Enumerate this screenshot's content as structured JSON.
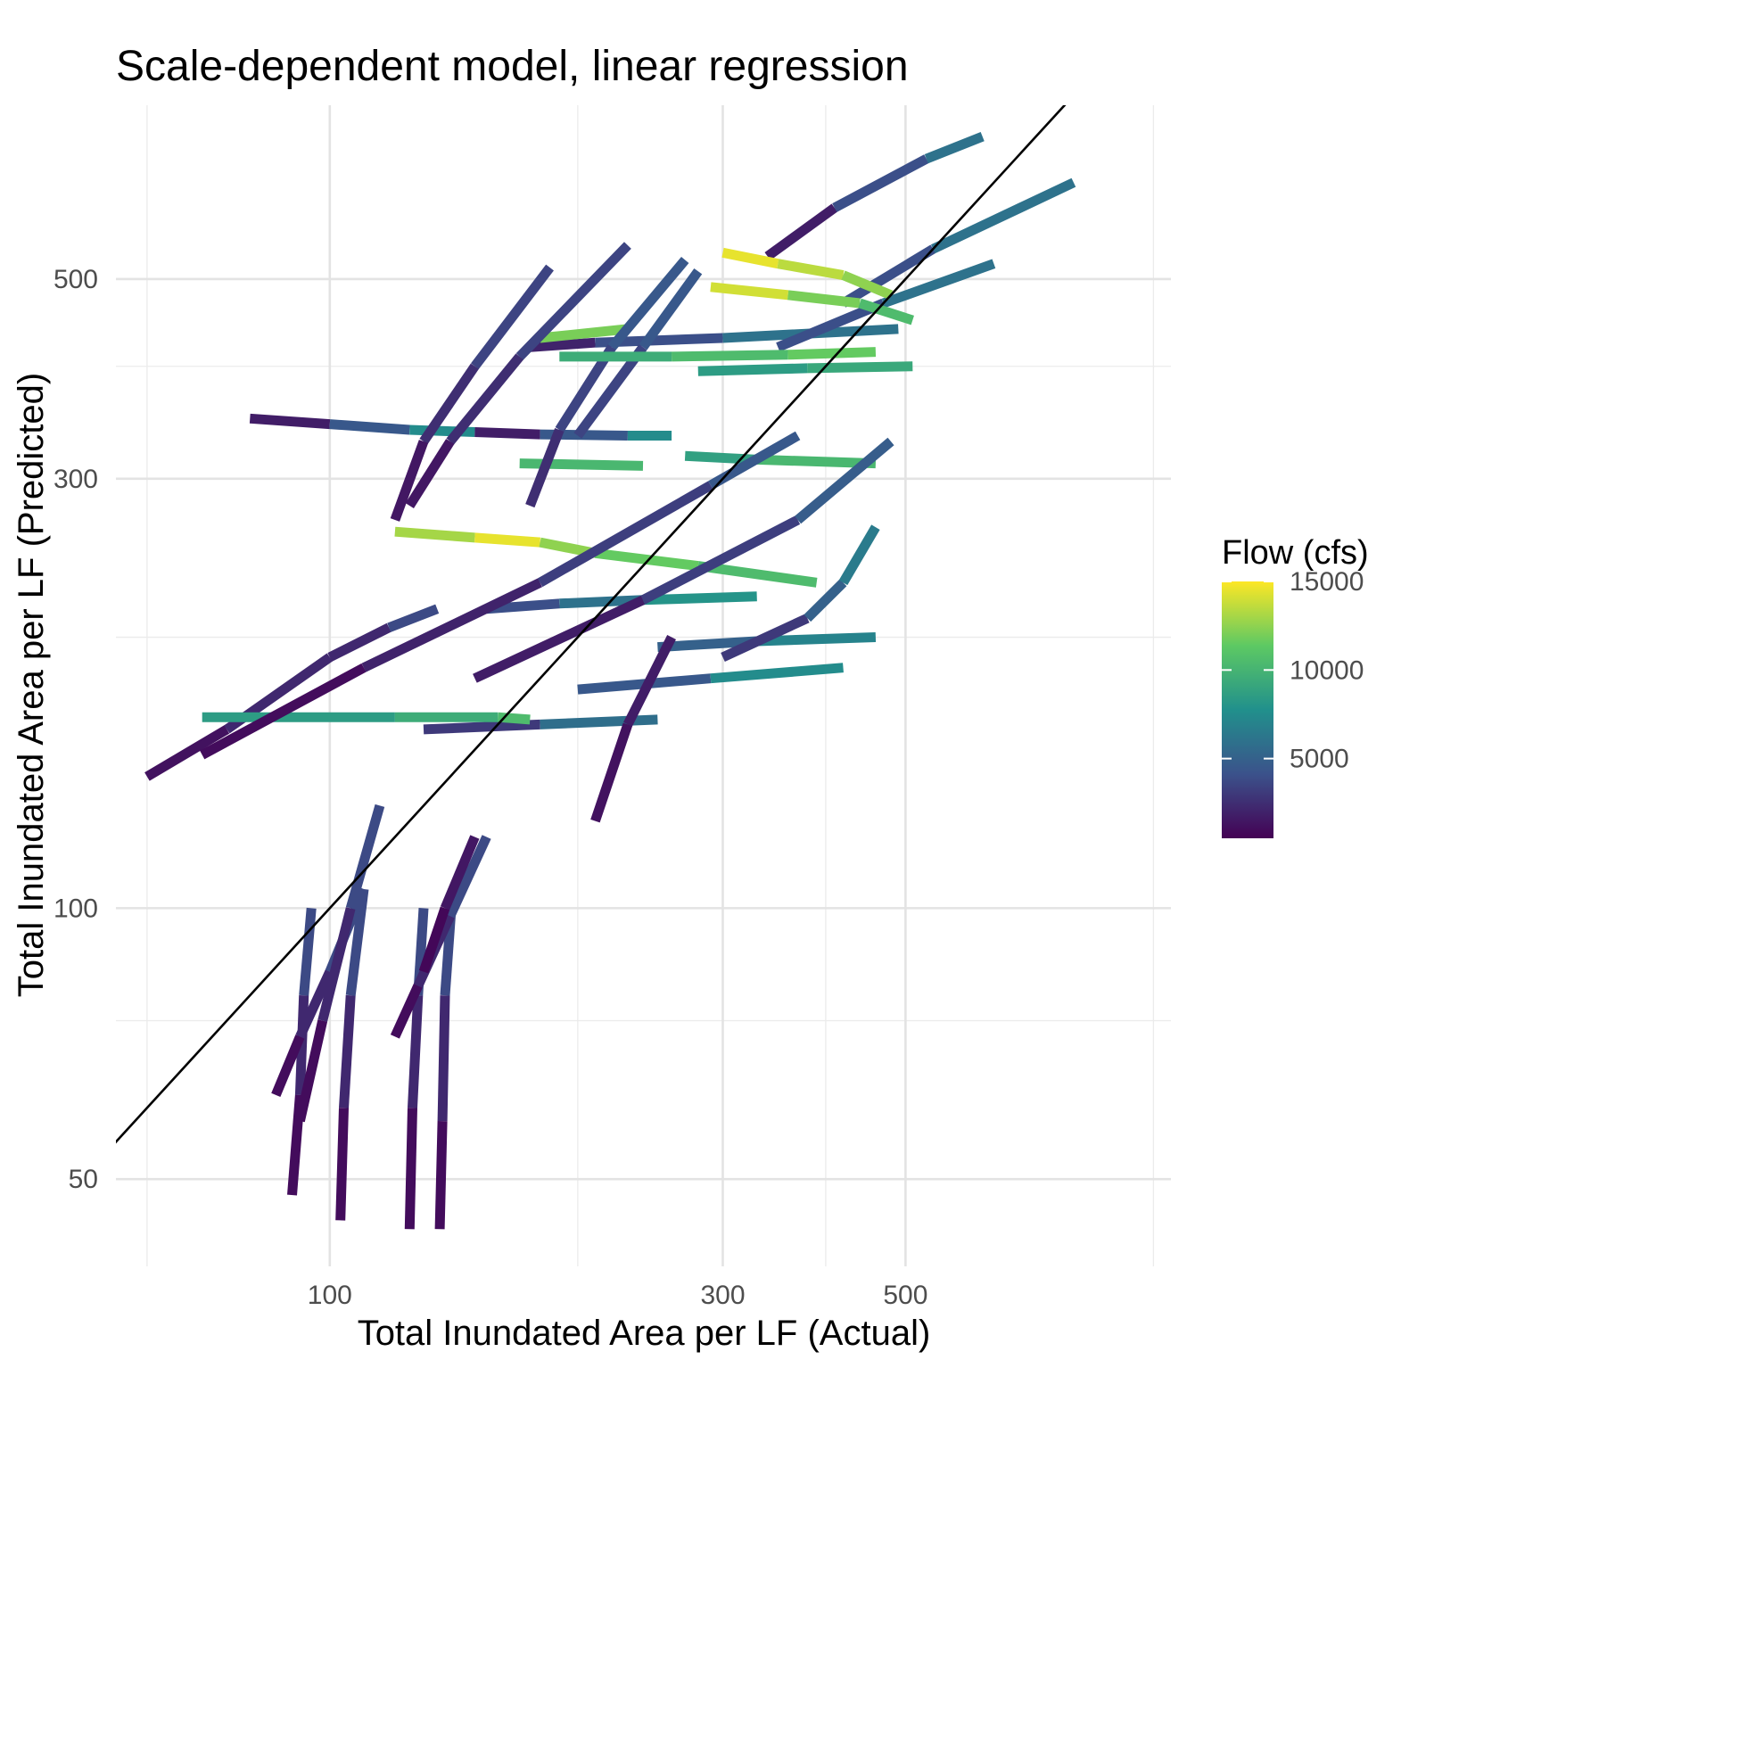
{
  "chart_data": {
    "type": "line",
    "title": "Scale-dependent model, linear regression",
    "xlabel": "Total Inundated Area per LF (Actual)",
    "ylabel": "Total Inundated Area per LF (Predicted)",
    "x_scale": "log10",
    "y_scale": "log10",
    "xlim": [
      55,
      1050
    ],
    "ylim": [
      40,
      780
    ],
    "x_major_ticks": [
      100,
      300,
      500
    ],
    "x_minor_ticks": [
      60,
      200,
      400,
      1000
    ],
    "y_major_ticks": [
      50,
      100,
      300,
      500
    ],
    "y_minor_ticks": [
      75,
      200,
      400
    ],
    "grid": true,
    "reference_line": "y = x",
    "legend": {
      "title": "Flow (cfs)",
      "position": "right",
      "type": "colorbar",
      "labels": [
        5000,
        10000,
        15000
      ],
      "range": [
        500,
        15000
      ],
      "colormap": [
        "#440154",
        "#3b528b",
        "#21908c",
        "#5dc963",
        "#fde725"
      ]
    },
    "series": [
      {
        "flow": [
          500,
          1500,
          3000,
          4500
        ],
        "x": [
          90,
          92,
          93,
          95
        ],
        "y": [
          48,
          62,
          80,
          100
        ]
      },
      {
        "flow": [
          500,
          1500,
          3000,
          4500
        ],
        "x": [
          103,
          104,
          106,
          110
        ],
        "y": [
          45,
          60,
          80,
          105
        ]
      },
      {
        "flow": [
          500,
          1500,
          3000,
          4500
        ],
        "x": [
          125,
          126,
          128,
          130
        ],
        "y": [
          44,
          60,
          80,
          100
        ]
      },
      {
        "flow": [
          500,
          1500,
          3000,
          4500
        ],
        "x": [
          136,
          137,
          138,
          141
        ],
        "y": [
          44,
          58,
          80,
          105
        ]
      },
      {
        "flow": [
          500,
          1500,
          3000,
          4500
        ],
        "x": [
          86,
          92,
          100,
          110
        ],
        "y": [
          62,
          72,
          85,
          105
        ]
      },
      {
        "flow": [
          500,
          1500,
          3000,
          4500
        ],
        "x": [
          120,
          128,
          140,
          155
        ],
        "y": [
          72,
          82,
          98,
          120
        ]
      },
      {
        "flow": [
          500,
          1500,
          3000,
          4500
        ],
        "x": [
          92,
          98,
          106,
          115
        ],
        "y": [
          58,
          75,
          100,
          130
        ]
      },
      {
        "flow": [
          500,
          1000,
          2000
        ],
        "x": [
          130,
          138,
          150
        ],
        "y": [
          85,
          100,
          120
        ]
      },
      {
        "flow": [
          1000,
          1500,
          3000
        ],
        "x": [
          60,
          75,
          100
        ],
        "y": [
          140,
          158,
          190
        ]
      },
      {
        "flow": [
          1500,
          3000,
          4500
        ],
        "x": [
          100,
          118,
          135
        ],
        "y": [
          190,
          205,
          215
        ]
      },
      {
        "flow": [
          3000,
          5000,
          7000,
          9000
        ],
        "x": [
          155,
          190,
          240,
          330
        ],
        "y": [
          215,
          218,
          220,
          222
        ]
      },
      {
        "flow": [
          3000,
          6000,
          9000
        ],
        "x": [
          200,
          290,
          420
        ],
        "y": [
          175,
          180,
          185
        ]
      },
      {
        "flow": [
          4000,
          6000,
          8000
        ],
        "x": [
          250,
          330,
          460
        ],
        "y": [
          195,
          198,
          200
        ]
      },
      {
        "flow": [
          500,
          3000,
          6000,
          9000
        ],
        "x": [
          80,
          100,
          125,
          150
        ],
        "y": [
          350,
          345,
          340,
          338
        ]
      },
      {
        "flow": [
          500,
          3000,
          6000,
          9000
        ],
        "x": [
          150,
          180,
          230,
          260
        ],
        "y": [
          338,
          336,
          335,
          335
        ]
      },
      {
        "flow": [
          8000,
          9500,
          11000
        ],
        "x": [
          270,
          330,
          460
        ],
        "y": [
          318,
          315,
          312
        ]
      },
      {
        "flow": [
          9500,
          11000
        ],
        "x": [
          170,
          240
        ],
        "y": [
          312,
          310
        ]
      },
      {
        "flow": [
          12000,
          14000,
          15000
        ],
        "x": [
          120,
          150,
          180
        ],
        "y": [
          262,
          258,
          255
        ]
      },
      {
        "flow": [
          13000,
          12000,
          11000,
          10000
        ],
        "x": [
          180,
          210,
          280,
          390
        ],
        "y": [
          255,
          248,
          240,
          230
        ]
      },
      {
        "flow": [
          1500,
          4500,
          7000
        ],
        "x": [
          130,
          180,
          250
        ],
        "y": [
          158,
          160,
          162
        ]
      },
      {
        "flow": [
          8000,
          9000,
          10000,
          11000
        ],
        "x": [
          70,
          120,
          160,
          175
        ],
        "y": [
          163,
          163,
          163,
          162
        ]
      },
      {
        "flow": [
          1000,
          3000,
          5000,
          7000
        ],
        "x": [
          175,
          210,
          300,
          490
        ],
        "y": [
          420,
          425,
          430,
          440
        ]
      },
      {
        "flow": [
          11000,
          13000
        ],
        "x": [
          180,
          230
        ],
        "y": [
          430,
          440
        ]
      },
      {
        "flow": [
          4000,
          3000,
          2000,
          1000
        ],
        "x": [
          185,
          150,
          130,
          120
        ],
        "y": [
          515,
          400,
          330,
          270
        ]
      },
      {
        "flow": [
          4000,
          3000,
          2000,
          1000
        ],
        "x": [
          230,
          170,
          140,
          125
        ],
        "y": [
          545,
          410,
          330,
          280
        ]
      },
      {
        "flow": [
          5000,
          4000,
          3000,
          2000
        ],
        "x": [
          270,
          220,
          190,
          175
        ],
        "y": [
          525,
          420,
          340,
          280
        ]
      },
      {
        "flow": [
          5000,
          4000,
          3000
        ],
        "x": [
          280,
          240,
          200
        ],
        "y": [
          510,
          420,
          335
        ]
      },
      {
        "flow": [
          500,
          1500,
          2500,
          4000,
          5000
        ],
        "x": [
          70,
          110,
          180,
          290,
          370
        ],
        "y": [
          148,
          185,
          230,
          295,
          335
        ]
      },
      {
        "flow": [
          1000,
          2500,
          4000,
          5500
        ],
        "x": [
          150,
          240,
          370,
          480
        ],
        "y": [
          180,
          220,
          270,
          330
        ]
      },
      {
        "flow": [
          500,
          3000,
          5000,
          7000
        ],
        "x": [
          340,
          410,
          530,
          620
        ],
        "y": [
          530,
          600,
          680,
          720
        ]
      },
      {
        "flow": [
          3000,
          5000,
          7000
        ],
        "x": [
          420,
          540,
          800
        ],
        "y": [
          470,
          540,
          640
        ]
      },
      {
        "flow": [
          3000,
          5000,
          7000
        ],
        "x": [
          350,
          470,
          640
        ],
        "y": [
          420,
          470,
          520
        ]
      },
      {
        "flow": [
          15000,
          14000,
          13000,
          12000
        ],
        "x": [
          300,
          350,
          420,
          480
        ],
        "y": [
          535,
          520,
          505,
          480
        ]
      },
      {
        "flow": [
          15000,
          13000,
          11000,
          10000
        ],
        "x": [
          290,
          360,
          440,
          510
        ],
        "y": [
          490,
          480,
          470,
          450
        ]
      },
      {
        "flow": [
          9000,
          10000,
          11000,
          12000
        ],
        "x": [
          190,
          260,
          360,
          460
        ],
        "y": [
          410,
          410,
          412,
          415
        ]
      },
      {
        "flow": [
          8000,
          9000,
          9500
        ],
        "x": [
          280,
          380,
          510
        ],
        "y": [
          395,
          398,
          400
        ]
      },
      {
        "flow": [
          2000,
          4000,
          6000,
          7000
        ],
        "x": [
          300,
          380,
          420,
          460
        ],
        "y": [
          190,
          210,
          230,
          265
        ]
      },
      {
        "flow": [
          1000,
          1500,
          2000
        ],
        "x": [
          210,
          230,
          260
        ],
        "y": [
          125,
          160,
          200
        ]
      }
    ]
  }
}
